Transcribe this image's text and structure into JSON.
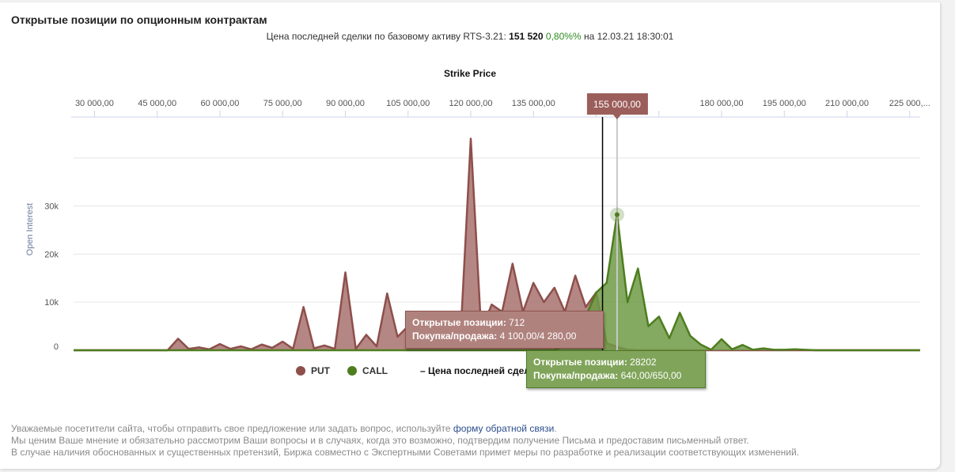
{
  "title": "Открытые позиции по опционным контрактам",
  "subtitle": {
    "prefix": "Цена последней сделки по базовому активу RTS-3.21:",
    "price": "151 520",
    "change": "0,80%%",
    "on": "на",
    "datetime": "12.03.21 18:30:01"
  },
  "tooltips": {
    "put": {
      "label1": "Открытые позиции:",
      "value1": "712",
      "label2": "Покупка/продажа:",
      "value2": "4 100,00/4 280,00"
    },
    "call": {
      "label1": "Открытые позиции:",
      "value1": "28202",
      "label2": "Покупка/продажа:",
      "value2": "640,00/650,00"
    }
  },
  "crosshair_label": "155 000,00",
  "footer": {
    "line1_prefix": "Уважаемые посетители сайта, чтобы отправить свое предложение или задать вопрос, используйте ",
    "link": "форму обратной связи",
    "line1_suffix": ".",
    "line2": "Мы ценим Ваше мнение и обязательно рассмотрим Ваши вопросы и в случаях, когда это возможно, подтвердим получение Письма и предоставим письменный ответ.",
    "line3": "В случае наличия обоснованных и существенных претензий, Биржа совместно с Экспертными Советами примет меры по разработке и реализации соответствующих изменений."
  },
  "colors": {
    "put": "#8e4f4b",
    "put_fill": "#a8726e",
    "call": "#4e7d1f",
    "call_fill": "#6f9a45"
  },
  "chart_data": {
    "type": "area",
    "xlabel": "Strike Price",
    "ylabel": "Open Interest",
    "xlim": [
      25000,
      227500
    ],
    "ylim": [
      0,
      48500
    ],
    "x_ticks": [
      30000,
      45000,
      60000,
      75000,
      90000,
      105000,
      120000,
      135000,
      150000,
      165000,
      180000,
      195000,
      210000,
      225000
    ],
    "x_tick_labels": [
      "30 000,00",
      "45 000,00",
      "60 000,00",
      "75 000,00",
      "90 000,00",
      "105 000,00",
      "120 000,00",
      "135 000,00",
      "",
      "",
      "180 000,00",
      "195 000,00",
      "210 000,00",
      "225 000,..."
    ],
    "y_ticks": [
      0,
      10000,
      20000,
      30000
    ],
    "y_tick_labels": [
      "0",
      "10k",
      "20k",
      "30k"
    ],
    "y_gridlines": [
      0,
      10000,
      20000,
      30000,
      40000
    ],
    "last_price": 151520,
    "hover_x": 155000,
    "legend": {
      "placement": "bottom",
      "items": [
        "PUT",
        "CALL",
        "– Цена последней сделки"
      ]
    },
    "x_step": 2500,
    "series": [
      {
        "name": "PUT",
        "values": [
          0,
          0,
          0,
          0,
          0,
          0,
          0,
          0,
          0,
          0,
          2400,
          300,
          600,
          200,
          1300,
          300,
          800,
          200,
          1200,
          500,
          1800,
          300,
          9000,
          400,
          1000,
          300,
          16200,
          300,
          3200,
          800,
          11800,
          2800,
          5000,
          3000,
          6000,
          4000,
          5000,
          2000,
          44000,
          4000,
          9500,
          8000,
          18000,
          8000,
          14000,
          10000,
          13000,
          8000,
          15500,
          9000,
          12000,
          1500,
          712,
          100,
          0,
          0,
          0,
          0,
          0,
          0,
          0,
          0,
          0,
          0,
          0,
          0,
          0,
          0,
          0,
          0,
          0,
          0,
          0,
          0,
          0,
          0,
          0,
          0,
          0,
          0,
          0,
          0
        ]
      },
      {
        "name": "CALL",
        "values": [
          0,
          0,
          0,
          0,
          0,
          0,
          0,
          0,
          0,
          0,
          0,
          0,
          0,
          0,
          0,
          0,
          0,
          0,
          0,
          0,
          0,
          0,
          0,
          0,
          0,
          0,
          0,
          0,
          0,
          0,
          0,
          0,
          0,
          0,
          0,
          0,
          0,
          0,
          0,
          0,
          0,
          0,
          0,
          0,
          0,
          0,
          0,
          1000,
          3000,
          7000,
          12000,
          14000,
          28202,
          10000,
          17000,
          5000,
          7000,
          2500,
          7800,
          3000,
          1200,
          100,
          2300,
          200,
          1100,
          100,
          400,
          100,
          100,
          200,
          100,
          0,
          0,
          0,
          0,
          0,
          0,
          0,
          0,
          0,
          0,
          0
        ]
      }
    ]
  }
}
